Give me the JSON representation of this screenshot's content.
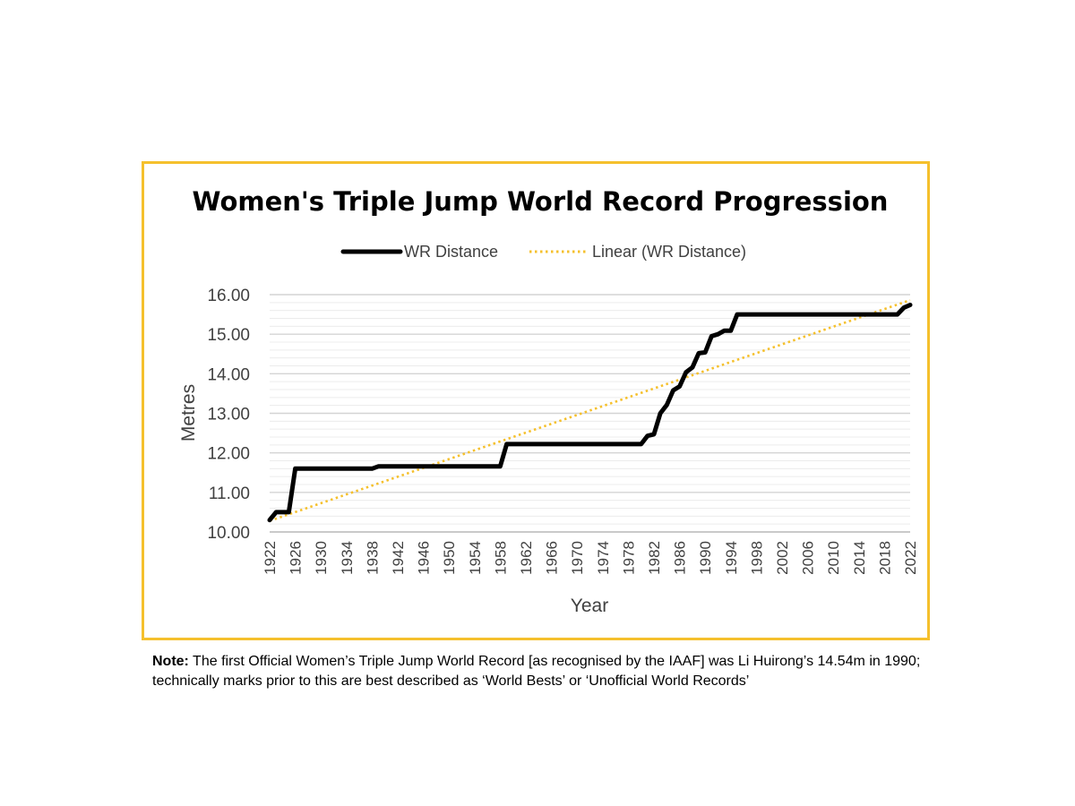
{
  "chart_data": {
    "type": "line",
    "title": "Women's Triple Jump World Record Progression",
    "xlabel": "Year",
    "ylabel": "Metres",
    "xlim": [
      1922,
      2022
    ],
    "ylim": [
      10.0,
      16.0
    ],
    "y_ticks": [
      "10.00",
      "11.00",
      "12.00",
      "13.00",
      "14.00",
      "15.00",
      "16.00"
    ],
    "x_ticks": [
      "1922",
      "1926",
      "1930",
      "1934",
      "1938",
      "1942",
      "1946",
      "1950",
      "1954",
      "1958",
      "1962",
      "1966",
      "1970",
      "1974",
      "1978",
      "1982",
      "1986",
      "1990",
      "1994",
      "1998",
      "2002",
      "2006",
      "2010",
      "2014",
      "2018",
      "2022"
    ],
    "grid": true,
    "legend_position": "top",
    "series": [
      {
        "name": "WR Distance",
        "color": "#000000",
        "style": "solid",
        "x": [
          1922,
          1923,
          1924,
          1925,
          1926,
          1927,
          1937,
          1938,
          1939,
          1957,
          1958,
          1959,
          1980,
          1981,
          1982,
          1983,
          1984,
          1985,
          1986,
          1987,
          1988,
          1989,
          1990,
          1991,
          1992,
          1993,
          1994,
          1995,
          2020,
          2021,
          2022
        ],
        "y": [
          10.3,
          10.5,
          10.5,
          10.5,
          11.6,
          11.6,
          11.6,
          11.6,
          11.66,
          11.66,
          11.66,
          12.22,
          12.22,
          12.43,
          12.47,
          13.0,
          13.21,
          13.58,
          13.68,
          14.04,
          14.16,
          14.52,
          14.54,
          14.95,
          15.0,
          15.09,
          15.09,
          15.5,
          15.5,
          15.67,
          15.74
        ]
      },
      {
        "name": "Linear (WR Distance)",
        "color": "#f5c02d",
        "style": "dotted",
        "x": [
          1922,
          2022
        ],
        "y": [
          10.28,
          15.86
        ]
      }
    ]
  },
  "note": {
    "label": "Note:",
    "text": "The first Official Women’s Triple Jump World Record [as recognised by the IAAF] was Li Huirong’s 14.54m in 1990; technically marks prior to this are best described as ‘World Bests’ or ‘Unofficial World Records’"
  }
}
